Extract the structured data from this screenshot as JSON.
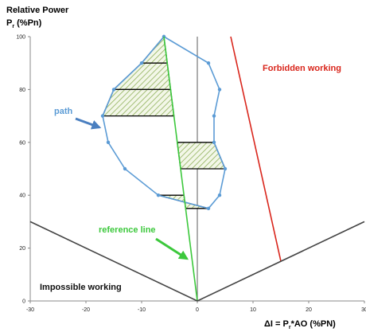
{
  "chart_data": {
    "type": "line",
    "ylabel": {
      "line1": "Relative Power",
      "symbol": "P",
      "subscript": "r",
      "unit": " (%Pn)"
    },
    "xlabel": {
      "prefix": "ΔI = P",
      "subscript": "r",
      "suffix": "*AO (%PN)"
    },
    "annotations": {
      "forbidden": "Forbidden working",
      "path": "path",
      "reference": "reference line",
      "impossible": "Impossible working"
    },
    "xlim": [
      -30,
      30
    ],
    "xticks": [
      -30,
      -20,
      -10,
      0,
      10,
      20,
      30
    ],
    "ylim": [
      0,
      100
    ],
    "yticks": [
      0,
      20,
      40,
      60,
      80,
      100
    ],
    "series": [
      {
        "name": "path",
        "color": "#5b9bd5",
        "markers": true,
        "x": [
          -6,
          2,
          4,
          3,
          3,
          5,
          4,
          2,
          -7,
          -13,
          -16,
          -17,
          -15,
          -10,
          -6
        ],
        "values": [
          100,
          90,
          80,
          70,
          60,
          50,
          40,
          35,
          40,
          50,
          60,
          70,
          80,
          90,
          100
        ]
      },
      {
        "name": "reference line",
        "color": "#3cc83c",
        "x": [
          -6,
          0
        ],
        "values": [
          100,
          0
        ]
      },
      {
        "name": "Forbidden working",
        "color": "#d9261c",
        "x": [
          6,
          15
        ],
        "values": [
          100,
          15
        ]
      },
      {
        "name": "Impossible working",
        "color": "#444444",
        "x": [
          -30,
          0,
          30
        ],
        "values": [
          30,
          0,
          30
        ]
      }
    ],
    "regions": [
      {
        "x": [
          -6,
          -10,
          -5.4
        ],
        "y": [
          100,
          90,
          90
        ]
      },
      {
        "x": [
          -10,
          -15,
          -4.8,
          -5.4
        ],
        "y": [
          90,
          80,
          80,
          90
        ]
      },
      {
        "x": [
          -15,
          -17,
          -4.2,
          -4.8
        ],
        "y": [
          80,
          70,
          70,
          80
        ]
      },
      {
        "x": [
          -3.6,
          3,
          5,
          -3
        ],
        "y": [
          60,
          60,
          50,
          50
        ]
      },
      {
        "x": [
          -7,
          -2.4,
          -2.1,
          2
        ],
        "y": [
          40,
          40,
          35,
          35
        ]
      }
    ]
  }
}
